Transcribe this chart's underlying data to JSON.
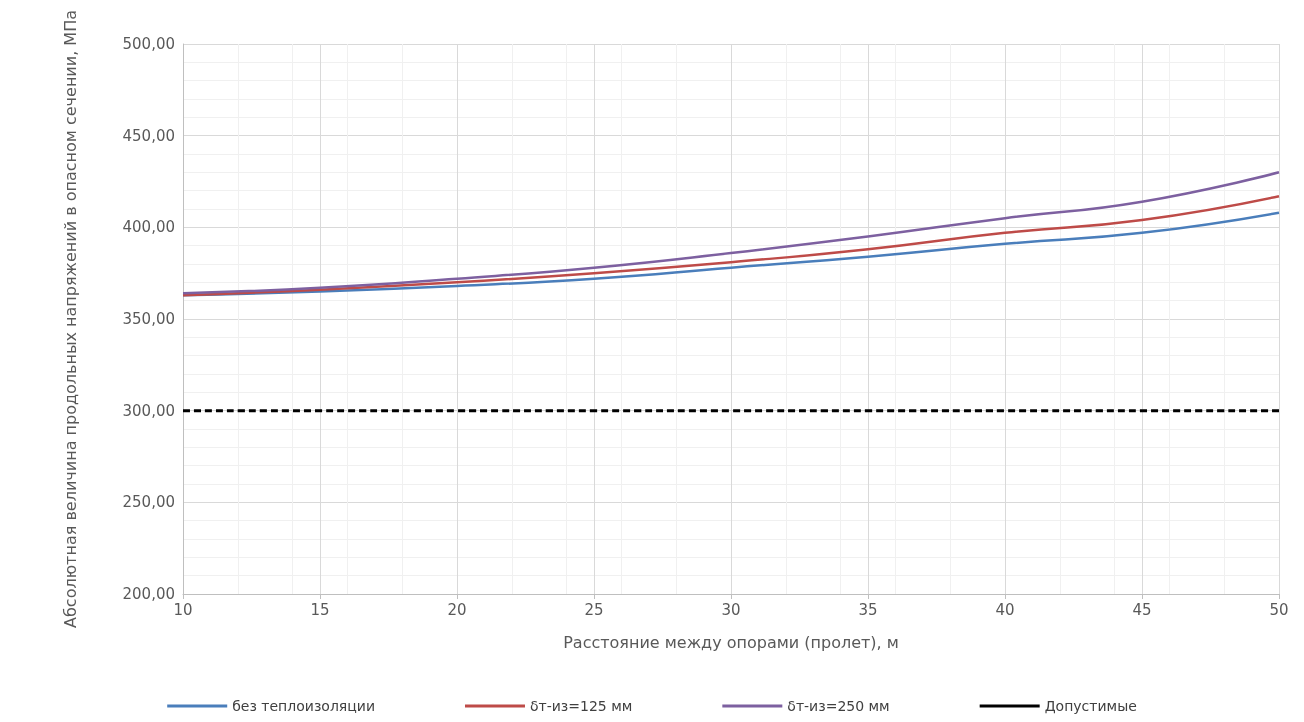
{
  "chart_data": {
    "type": "line",
    "xlabel": "Расстояние между опорами (пролет), м",
    "ylabel": "Абсолютная величина продольных напряжений в опасном сечении, МПа",
    "x": [
      10,
      15,
      20,
      25,
      30,
      35,
      40,
      45,
      50
    ],
    "series": [
      {
        "name": "без теплоизоляции",
        "color": "#4a7ebb",
        "values": [
          363,
          365,
          368,
          372,
          378,
          384,
          391,
          397,
          408
        ]
      },
      {
        "name": "δт-из=125 мм",
        "color": "#be4b48",
        "values": [
          363,
          366,
          370,
          375,
          381,
          388,
          397,
          404,
          417
        ]
      },
      {
        "name": "δт-из=250 мм",
        "color": "#7d60a0",
        "values": [
          364,
          367,
          372,
          378,
          386,
          395,
          405,
          414,
          430
        ]
      },
      {
        "name": "Допустимые",
        "color": "#000000",
        "line_style": "dashed",
        "values": [
          300,
          300,
          300,
          300,
          300,
          300,
          300,
          300,
          300
        ]
      }
    ],
    "xlim": [
      10,
      50
    ],
    "xticks": [
      10,
      15,
      20,
      25,
      30,
      35,
      40,
      45,
      50
    ],
    "ylim": [
      200,
      500
    ],
    "yticks": [
      {
        "value": 200,
        "label": "200,00"
      },
      {
        "value": 250,
        "label": "250,00"
      },
      {
        "value": 300,
        "label": "300,00"
      },
      {
        "value": 350,
        "label": "350,00"
      },
      {
        "value": 400,
        "label": "400,00"
      },
      {
        "value": 450,
        "label": "450,00"
      },
      {
        "value": 500,
        "label": "500,00"
      }
    ],
    "grid": true,
    "legend": "bottom",
    "marker": "none",
    "line_style": "solid"
  }
}
